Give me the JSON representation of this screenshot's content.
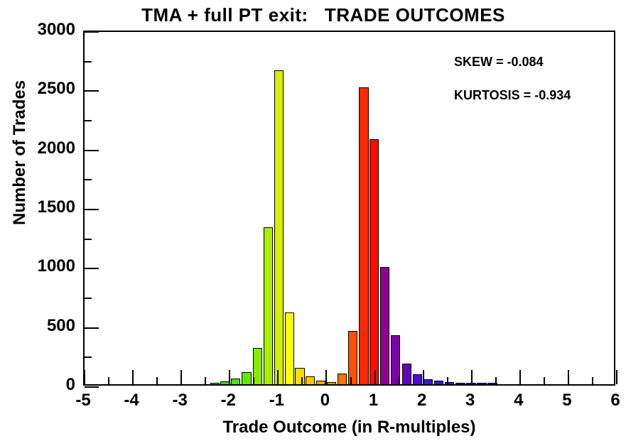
{
  "title": "TMA + full PT exit:   TRADE OUTCOMES",
  "annotations": {
    "skew": "SKEW = -0.084",
    "kurtosis": "KURTOSIS = -0.934"
  },
  "chart_data": {
    "type": "bar",
    "title": "TMA + full PT exit:   TRADE OUTCOMES",
    "xlabel": "Trade Outcome (in R-multiples)",
    "ylabel": "Number of Trades",
    "xlim": [
      -5,
      6
    ],
    "ylim": [
      0,
      3000
    ],
    "grid": false,
    "skew": -0.084,
    "kurtosis": -0.934,
    "x_major_ticks": [
      -5,
      -4,
      -3,
      -2,
      -1,
      0,
      1,
      2,
      3,
      4,
      5,
      6
    ],
    "x_minor_ticks": [
      -4.5,
      -3.5,
      -2.5,
      -1.5,
      -0.5,
      0.5,
      1.5,
      2.5,
      3.5,
      4.5,
      5.5
    ],
    "y_major_ticks": [
      0,
      500,
      1000,
      1500,
      2000,
      2500,
      3000
    ],
    "y_minor_ticks": [
      250,
      750,
      1250,
      1750,
      2250,
      2750
    ],
    "x_tick_labels": [
      "-5",
      "-4",
      "-3",
      "-2",
      "-1",
      "0",
      "1",
      "2",
      "3",
      "4",
      "5",
      "6"
    ],
    "y_tick_labels": [
      "0",
      "500",
      "1000",
      "1500",
      "2000",
      "2500",
      "3000"
    ],
    "bar_width_r": 0.195,
    "bars": [
      {
        "x": -2.31,
        "count": 15,
        "color": "#33CC33"
      },
      {
        "x": -2.1,
        "count": 25,
        "color": "#3FD32A"
      },
      {
        "x": -1.88,
        "count": 50,
        "color": "#52DC1B"
      },
      {
        "x": -1.65,
        "count": 100,
        "color": "#66E60D"
      },
      {
        "x": -1.42,
        "count": 305,
        "color": "#85EC00"
      },
      {
        "x": -1.2,
        "count": 1325,
        "color": "#AAEE00"
      },
      {
        "x": -0.98,
        "count": 2650,
        "color": "#D6EE00"
      },
      {
        "x": -0.76,
        "count": 605,
        "color": "#FFFF00"
      },
      {
        "x": -0.55,
        "count": 140,
        "color": "#FFDD00"
      },
      {
        "x": -0.34,
        "count": 65,
        "color": "#FFC800"
      },
      {
        "x": -0.12,
        "count": 30,
        "color": "#FFAA00"
      },
      {
        "x": 0.1,
        "count": 20,
        "color": "#FF9100"
      },
      {
        "x": 0.32,
        "count": 90,
        "color": "#FF7300"
      },
      {
        "x": 0.54,
        "count": 450,
        "color": "#FF5000"
      },
      {
        "x": 0.77,
        "count": 2510,
        "color": "#FF2600"
      },
      {
        "x": 0.99,
        "count": 2070,
        "color": "#FB0D00"
      },
      {
        "x": 1.21,
        "count": 990,
        "color": "#8F0090"
      },
      {
        "x": 1.43,
        "count": 415,
        "color": "#7C00A8"
      },
      {
        "x": 1.66,
        "count": 175,
        "color": "#6203BE"
      },
      {
        "x": 1.88,
        "count": 82,
        "color": "#4A0DCC"
      },
      {
        "x": 2.1,
        "count": 45,
        "color": "#3619D2"
      },
      {
        "x": 2.32,
        "count": 32,
        "color": "#2A20D6"
      },
      {
        "x": 2.54,
        "count": 18,
        "color": "#2424CE"
      },
      {
        "x": 2.77,
        "count": 10,
        "color": "#1E28C4"
      },
      {
        "x": 2.99,
        "count": 10,
        "color": "#1C2ABF"
      },
      {
        "x": 3.21,
        "count": 8,
        "color": "#1A2BBB"
      },
      {
        "x": 3.43,
        "count": 6,
        "color": "#182CB8"
      }
    ]
  }
}
